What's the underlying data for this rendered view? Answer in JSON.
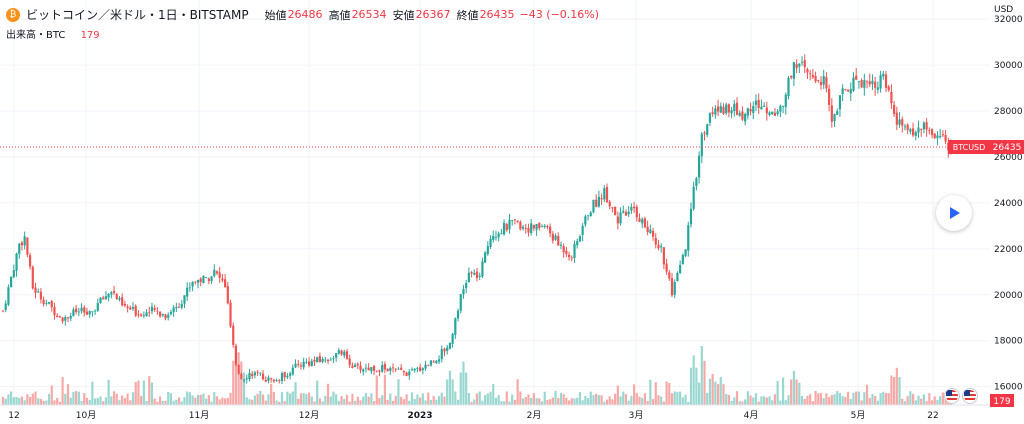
{
  "header": {
    "coin_icon": "₿",
    "symbol_title": "ビットコイン／米ドル・1日・BITSTAMP",
    "open_label": "始値",
    "open_value": "26486",
    "high_label": "高値",
    "high_value": "26534",
    "low_label": "安値",
    "low_value": "26367",
    "close_label": "終値",
    "close_value": "26435",
    "change": "−43 (−0.16%)",
    "volume_label": "出来高・BTC",
    "volume_value": "179"
  },
  "axis": {
    "currency": "USD"
  },
  "icons": {
    "coin": "bitcoin-icon",
    "play": "play-icon",
    "flag": "us-flag-icon"
  },
  "colors": {
    "up": "#26a69a",
    "down": "#ef5350",
    "last_price_bg": "#f23645"
  },
  "chart_data": {
    "type": "candlestick",
    "title": "ビットコイン／米ドル・1日・BITSTAMP",
    "y_ticks": [
      16000,
      18000,
      20000,
      22000,
      24000,
      26000,
      28000,
      30000,
      32000
    ],
    "ylim": [
      15200,
      32400
    ],
    "x_ticks": [
      "12",
      "10月",
      "11月",
      "12月",
      "2023",
      "2月",
      "3月",
      "4月",
      "5月",
      "22"
    ],
    "last_price_label": "BTCUSD",
    "last_price": 26435,
    "volume_last": 179,
    "grid": true,
    "price_path": [
      {
        "d": 0,
        "p": 19300
      },
      {
        "d": 6,
        "p": 22200
      },
      {
        "d": 8,
        "p": 22500
      },
      {
        "d": 11,
        "p": 20300
      },
      {
        "d": 18,
        "p": 19400
      },
      {
        "d": 22,
        "p": 19000
      },
      {
        "d": 28,
        "p": 19300
      },
      {
        "d": 32,
        "p": 19100
      },
      {
        "d": 35,
        "p": 19600
      },
      {
        "d": 40,
        "p": 20200
      },
      {
        "d": 44,
        "p": 19500
      },
      {
        "d": 50,
        "p": 19200
      },
      {
        "d": 56,
        "p": 19300
      },
      {
        "d": 60,
        "p": 19100
      },
      {
        "d": 65,
        "p": 19600
      },
      {
        "d": 70,
        "p": 20600
      },
      {
        "d": 75,
        "p": 20700
      },
      {
        "d": 78,
        "p": 21000
      },
      {
        "d": 82,
        "p": 20400
      },
      {
        "d": 84,
        "p": 18600
      },
      {
        "d": 86,
        "p": 16800
      },
      {
        "d": 88,
        "p": 16400
      },
      {
        "d": 92,
        "p": 16600
      },
      {
        "d": 100,
        "p": 16200
      },
      {
        "d": 110,
        "p": 17000
      },
      {
        "d": 120,
        "p": 17200
      },
      {
        "d": 125,
        "p": 17500
      },
      {
        "d": 130,
        "p": 16800
      },
      {
        "d": 140,
        "p": 16800
      },
      {
        "d": 150,
        "p": 16550
      },
      {
        "d": 160,
        "p": 17200
      },
      {
        "d": 165,
        "p": 17900
      },
      {
        "d": 168,
        "p": 19500
      },
      {
        "d": 172,
        "p": 20900
      },
      {
        "d": 176,
        "p": 20800
      },
      {
        "d": 180,
        "p": 22600
      },
      {
        "d": 188,
        "p": 23100
      },
      {
        "d": 195,
        "p": 22900
      },
      {
        "d": 200,
        "p": 23000
      },
      {
        "d": 205,
        "p": 22200
      },
      {
        "d": 210,
        "p": 21700
      },
      {
        "d": 216,
        "p": 23600
      },
      {
        "d": 222,
        "p": 24500
      },
      {
        "d": 227,
        "p": 23300
      },
      {
        "d": 233,
        "p": 23700
      },
      {
        "d": 238,
        "p": 22800
      },
      {
        "d": 243,
        "p": 22000
      },
      {
        "d": 247,
        "p": 20000
      },
      {
        "d": 252,
        "p": 22000
      },
      {
        "d": 255,
        "p": 24500
      },
      {
        "d": 258,
        "p": 26900
      },
      {
        "d": 262,
        "p": 28000
      },
      {
        "d": 268,
        "p": 28200
      },
      {
        "d": 273,
        "p": 27800
      },
      {
        "d": 278,
        "p": 28300
      },
      {
        "d": 284,
        "p": 27900
      },
      {
        "d": 288,
        "p": 28300
      },
      {
        "d": 292,
        "p": 30200
      },
      {
        "d": 298,
        "p": 29500
      },
      {
        "d": 303,
        "p": 29300
      },
      {
        "d": 306,
        "p": 27600
      },
      {
        "d": 310,
        "p": 28800
      },
      {
        "d": 315,
        "p": 29400
      },
      {
        "d": 320,
        "p": 29200
      },
      {
        "d": 325,
        "p": 29400
      },
      {
        "d": 330,
        "p": 27500
      },
      {
        "d": 334,
        "p": 27100
      },
      {
        "d": 340,
        "p": 27300
      },
      {
        "d": 346,
        "p": 26800
      },
      {
        "d": 350,
        "p": 26435
      }
    ],
    "volume_spikes": [
      {
        "d": 86,
        "v": 0.95
      },
      {
        "d": 87,
        "v": 0.85
      },
      {
        "d": 88,
        "v": 0.7
      },
      {
        "d": 165,
        "v": 0.55
      },
      {
        "d": 170,
        "v": 0.7
      },
      {
        "d": 255,
        "v": 0.8
      },
      {
        "d": 258,
        "v": 0.95
      },
      {
        "d": 262,
        "v": 0.5
      },
      {
        "d": 265,
        "v": 0.45
      },
      {
        "d": 292,
        "v": 0.55
      },
      {
        "d": 330,
        "v": 0.6
      }
    ]
  }
}
